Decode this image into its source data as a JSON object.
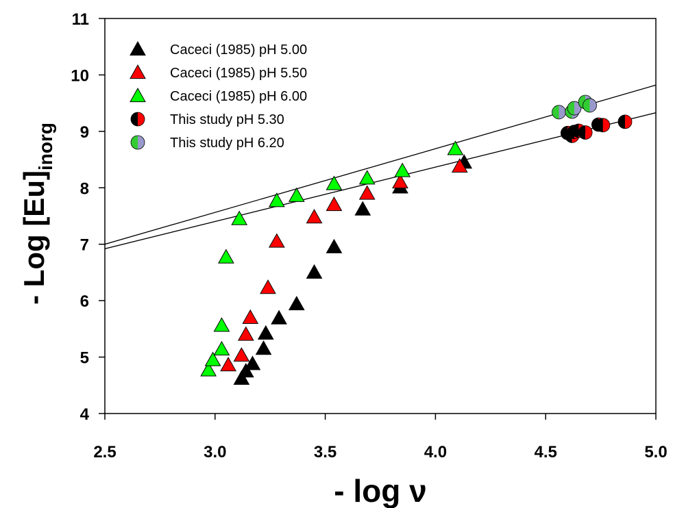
{
  "chart_data": {
    "type": "scatter",
    "xlabel": "- log ν",
    "ylabel": {
      "main": "- Log [Eu]",
      "subscript": "inorg"
    },
    "xlim": [
      2.5,
      5.0
    ],
    "ylim": [
      4,
      11
    ],
    "x_ticks": [
      "2.5",
      "3.0",
      "3.5",
      "4.0",
      "4.5",
      "5.0"
    ],
    "y_ticks": [
      "4",
      "5",
      "6",
      "7",
      "8",
      "9",
      "10",
      "11"
    ],
    "grid": false,
    "legend_position": "top-left",
    "series": [
      {
        "name": "Caceci (1985) pH 5.00",
        "marker": "triangle",
        "fill": "#000000",
        "points": [
          [
            3.12,
            4.62
          ],
          [
            3.14,
            4.75
          ],
          [
            3.17,
            4.88
          ],
          [
            3.22,
            5.15
          ],
          [
            3.23,
            5.42
          ],
          [
            3.29,
            5.69
          ],
          [
            3.37,
            5.94
          ],
          [
            3.45,
            6.5
          ],
          [
            3.54,
            6.95
          ],
          [
            3.67,
            7.62
          ],
          [
            3.84,
            8.01
          ],
          [
            4.13,
            8.45
          ]
        ]
      },
      {
        "name": "Caceci (1985) pH 5.50",
        "marker": "triangle",
        "fill": "#ff0000",
        "points": [
          [
            3.06,
            4.86
          ],
          [
            3.12,
            5.03
          ],
          [
            3.14,
            5.4
          ],
          [
            3.16,
            5.7
          ],
          [
            3.24,
            6.23
          ],
          [
            3.28,
            7.05
          ],
          [
            3.45,
            7.48
          ],
          [
            3.54,
            7.7
          ],
          [
            3.69,
            7.9
          ],
          [
            3.84,
            8.1
          ],
          [
            4.11,
            8.38
          ]
        ]
      },
      {
        "name": "Caceci (1985) pH 6.00",
        "marker": "triangle",
        "fill": "#00ff00",
        "points": [
          [
            2.97,
            4.77
          ],
          [
            2.99,
            4.95
          ],
          [
            3.03,
            5.14
          ],
          [
            3.03,
            5.56
          ],
          [
            3.05,
            6.77
          ],
          [
            3.11,
            7.45
          ],
          [
            3.28,
            7.77
          ],
          [
            3.37,
            7.86
          ],
          [
            3.54,
            8.07
          ],
          [
            3.69,
            8.17
          ],
          [
            3.85,
            8.3
          ],
          [
            4.09,
            8.69
          ]
        ]
      },
      {
        "name": "This study pH 5.30",
        "marker": "circle-split",
        "fill_left": "#000000",
        "fill_right": "#ff0000",
        "points": [
          [
            4.6,
            8.97
          ],
          [
            4.62,
            8.92
          ],
          [
            4.63,
            8.99
          ],
          [
            4.65,
            9.01
          ],
          [
            4.68,
            8.98
          ],
          [
            4.74,
            9.12
          ],
          [
            4.76,
            9.11
          ],
          [
            4.86,
            9.17
          ]
        ]
      },
      {
        "name": "This study pH 6.20",
        "marker": "circle-split",
        "fill_left": "#33cc33",
        "fill_right": "#9999cc",
        "points": [
          [
            4.56,
            9.34
          ],
          [
            4.62,
            9.35
          ],
          [
            4.63,
            9.41
          ],
          [
            4.68,
            9.52
          ],
          [
            4.7,
            9.46
          ]
        ]
      }
    ],
    "regression_lines": [
      {
        "x": [
          2.5,
          5.0
        ],
        "y": [
          7.0,
          9.82
        ]
      },
      {
        "x": [
          2.5,
          5.0
        ],
        "y": [
          6.92,
          9.33
        ]
      }
    ]
  }
}
